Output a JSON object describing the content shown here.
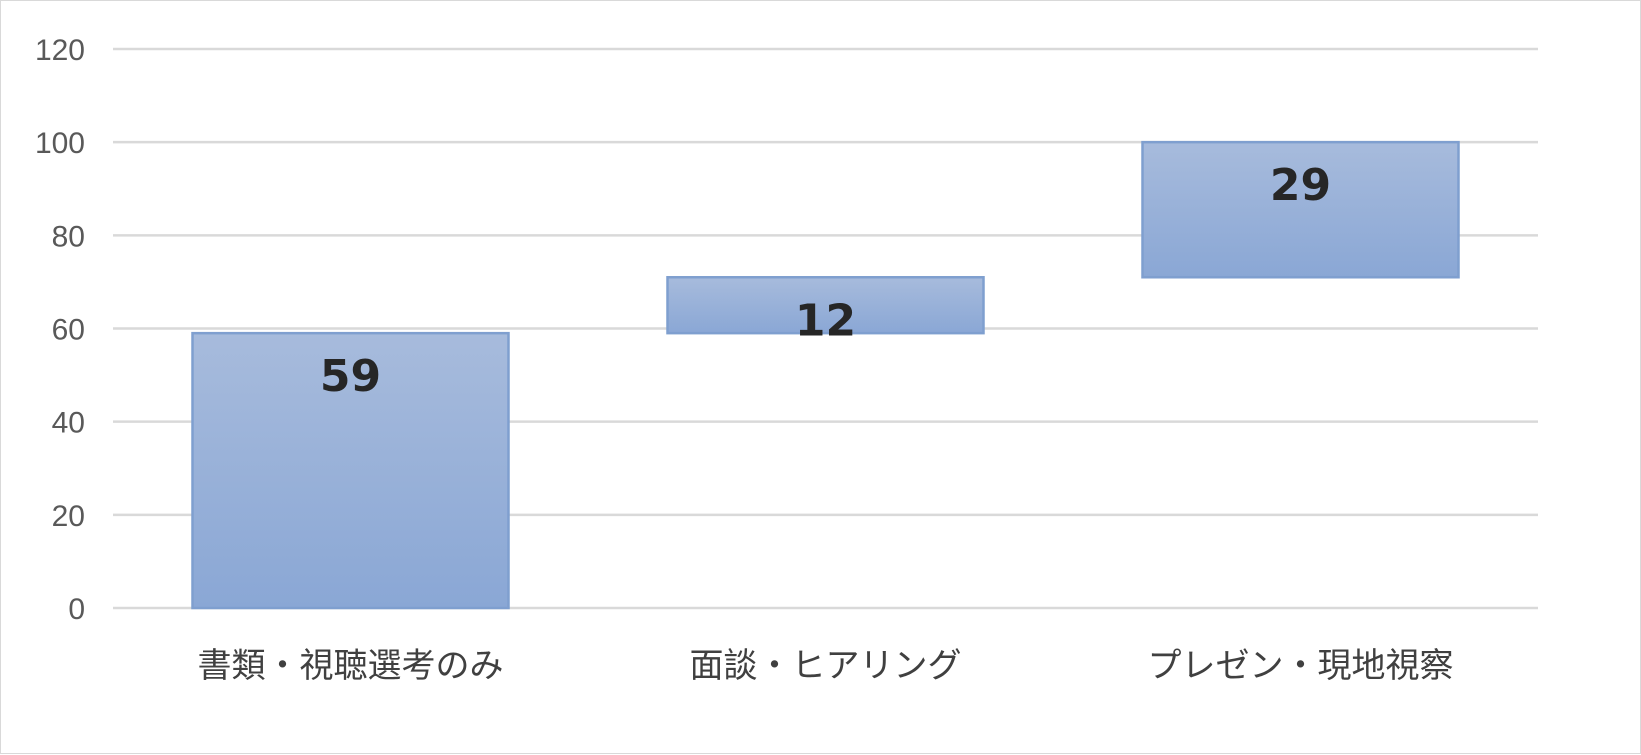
{
  "chart_data": {
    "type": "bar",
    "subtype": "waterfall",
    "categories": [
      "書類・視聴選考のみ",
      "面談・ヒアリング",
      "プレゼン・現地視察"
    ],
    "values": [
      59,
      12,
      29
    ],
    "bases": [
      0,
      59,
      71
    ],
    "ylim": [
      0,
      120
    ],
    "yticks": [
      "0",
      "20",
      "40",
      "60",
      "80",
      "100",
      "120"
    ],
    "data_labels": [
      "59",
      "12",
      "29"
    ],
    "grid": true,
    "legend": "none",
    "bar_color": "#94acd6",
    "bar_border": "#7f9fcf"
  }
}
